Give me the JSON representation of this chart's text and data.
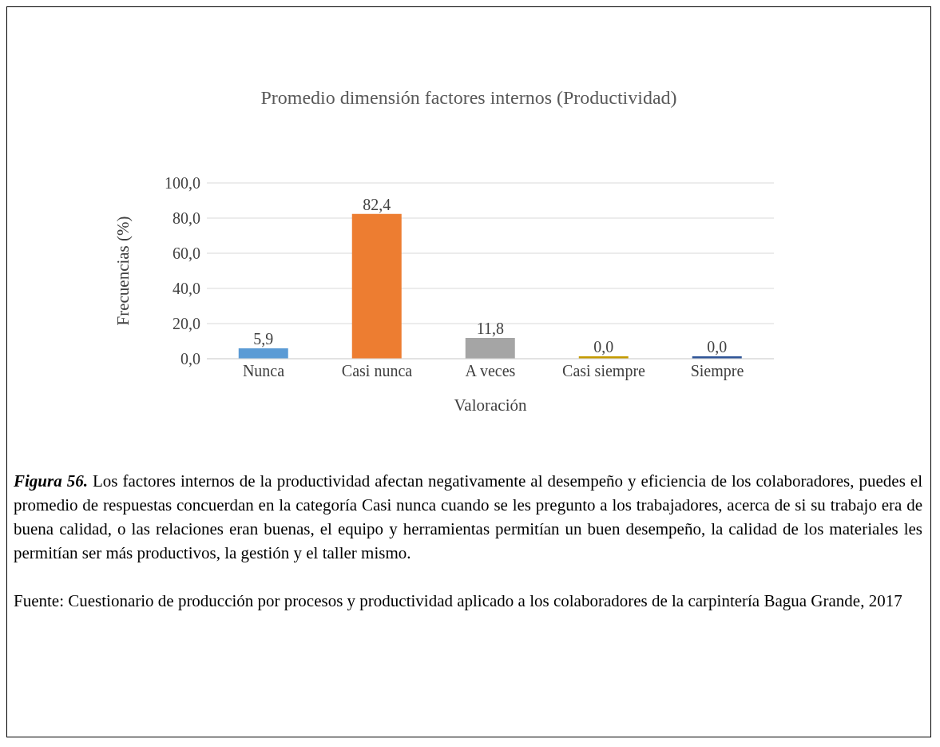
{
  "chart_data": {
    "type": "bar",
    "title": "Promedio dimensión factores internos (Productividad)",
    "xlabel": "Valoración",
    "ylabel": "Frecuencias (%)",
    "categories": [
      "Nunca",
      "Casi nunca",
      "A veces",
      "Casi siempre",
      "Siempre"
    ],
    "values": [
      5.9,
      82.4,
      11.8,
      0.0,
      0.0
    ],
    "colors": [
      "#5b9bd5",
      "#ed7d31",
      "#a5a5a5",
      "#c49a00",
      "#2f5597"
    ],
    "value_labels": [
      "5,9",
      "82,4",
      "11,8",
      "0,0",
      "0,0"
    ],
    "ylim": [
      0,
      100
    ],
    "yticks": [
      {
        "value": 0,
        "label": "0,0"
      },
      {
        "value": 20,
        "label": "20,0"
      },
      {
        "value": 40,
        "label": "40,0"
      },
      {
        "value": 60,
        "label": "60,0"
      },
      {
        "value": 80,
        "label": "80,0"
      },
      {
        "value": 100,
        "label": "100,0"
      }
    ],
    "grid": "y",
    "annotations": [
      "Figura 56.",
      "Los factores internos de la productividad afectan negativamente al desempeño y eficiencia de los colaboradores, puedes el promedio de respuestas concuerdan en la categoría Casi nunca cuando se les pregunto a los trabajadores, acerca de si su trabajo era de buena calidad, o las relaciones eran buenas, el equipo y herramientas permitían un buen desempeño, la calidad de los materiales les permitían ser más productivos, la gestión y el taller mismo.",
      "Fuente: Cuestionario de producción por procesos y productividad aplicado a los colaboradores de la carpintería Bagua Grande, 2017"
    ]
  }
}
